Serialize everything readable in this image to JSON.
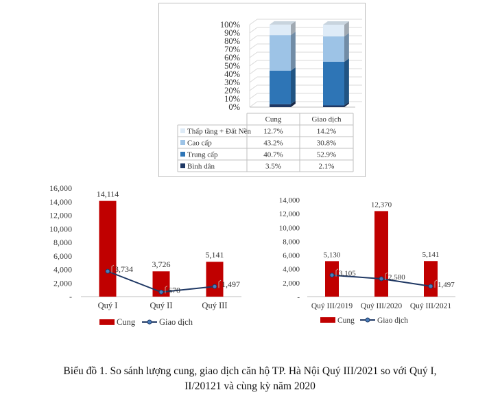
{
  "caption": {
    "line1": "Biểu đồ 1. So sánh lượng cung, giao dịch căn hộ TP. Hà Nội Quý III/2021 so với Quý I,",
    "line2": "II/20121 và cùng kỳ năm 2020"
  },
  "chart_data": [
    {
      "type": "bar",
      "stacked": "percent",
      "categories": [
        "Cung",
        "Giao dịch"
      ],
      "y_ticks": [
        "0%",
        "10%",
        "20%",
        "30%",
        "40%",
        "50%",
        "60%",
        "70%",
        "80%",
        "90%",
        "100%"
      ],
      "ylim": [
        0,
        100
      ],
      "series": [
        {
          "name": "Bình dân",
          "values": [
            3.5,
            2.1
          ],
          "labels": [
            "3.5%",
            "2.1%"
          ],
          "color": "#1f3864"
        },
        {
          "name": "Trung cấp",
          "values": [
            40.7,
            52.9
          ],
          "labels": [
            "40.7%",
            "52.9%"
          ],
          "color": "#2e75b6"
        },
        {
          "name": "Cao cấp",
          "values": [
            43.2,
            30.8
          ],
          "labels": [
            "43.2%",
            "30.8%"
          ],
          "color": "#9dc3e6"
        },
        {
          "name": "Thấp tầng + Đất Nền",
          "values": [
            12.7,
            14.2
          ],
          "labels": [
            "12.7%",
            "14.2%"
          ],
          "color": "#deebf7"
        }
      ],
      "table": true
    },
    {
      "type": "bar+line",
      "categories": [
        "Quý I",
        "Quý II",
        "Quý III"
      ],
      "ylim": [
        0,
        16000
      ],
      "y_ticks": [
        "-",
        "2,000",
        "4,000",
        "6,000",
        "8,000",
        "10,000",
        "12,000",
        "14,000",
        "16,000"
      ],
      "series": [
        {
          "name": "Cung",
          "kind": "bar",
          "values": [
            14114,
            3726,
            5141
          ],
          "labels": [
            "14,114",
            "3,726",
            "5,141"
          ],
          "color": "#c00000"
        },
        {
          "name": "Giao dịch",
          "kind": "line",
          "values": [
            3734,
            670,
            1497
          ],
          "labels": [
            "3,734",
            "670",
            "1,497"
          ],
          "color": "#1f3864"
        }
      ]
    },
    {
      "type": "bar+line",
      "categories": [
        "Quý III/2019",
        "Quý III/2020",
        "Quý III/2021"
      ],
      "ylim": [
        0,
        14000
      ],
      "y_ticks": [
        "-",
        "2,000",
        "4,000",
        "6,000",
        "8,000",
        "10,000",
        "12,000",
        "14,000"
      ],
      "series": [
        {
          "name": "Cung",
          "kind": "bar",
          "values": [
            5130,
            12370,
            5141
          ],
          "labels": [
            "5,130",
            "12,370",
            "5,141"
          ],
          "color": "#c00000"
        },
        {
          "name": "Giao dịch",
          "kind": "line",
          "values": [
            3105,
            2580,
            1497
          ],
          "labels": [
            "3,105",
            "2,580",
            "1,497"
          ],
          "color": "#1f3864"
        }
      ]
    }
  ]
}
